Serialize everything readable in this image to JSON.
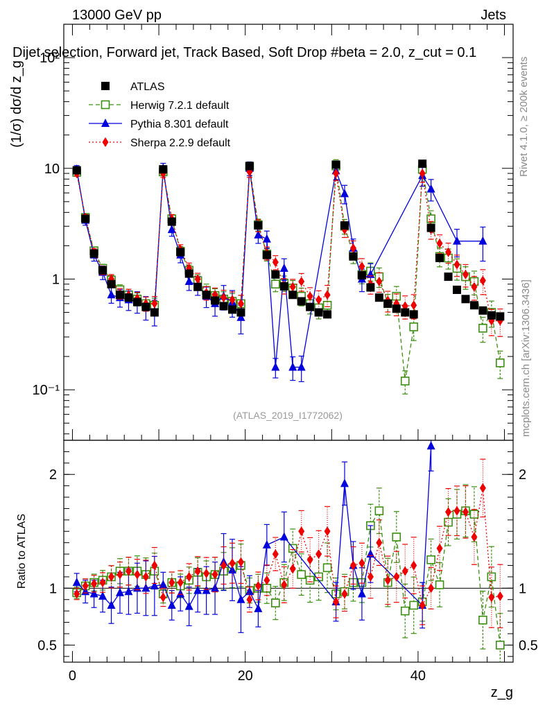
{
  "header": {
    "energy": "13000 GeV pp",
    "category": "Jets",
    "plot_title": "Dijet selection, Forward jet, Track Based, Soft Drop #beta = 2.0, z_cut = 0.1",
    "watermark": "(ATLAS_2019_I1772062)"
  },
  "side_labels": {
    "rivet": "Rivet 4.1.0, ≥ 200k events",
    "mcplots": "mcplots.cern.ch [arXiv:1306.3436]"
  },
  "colors": {
    "atlas": "#000000",
    "herwig": "#3a8f0f",
    "pythia": "#0000dd",
    "sherpa": "#ee0000"
  },
  "chart_data": [
    {
      "type": "scatter",
      "panel": "main",
      "ylabel": "(1/σ) dσ/d z_g",
      "yscale": "log",
      "ylim": [
        0.035,
        200
      ],
      "xlim": [
        -1,
        51
      ],
      "yticks": [
        {
          "value": 0.1,
          "label": "10⁻¹"
        },
        {
          "value": 1,
          "label": "1"
        },
        {
          "value": 10,
          "label": "10"
        },
        {
          "value": 100,
          "label": "10²"
        }
      ],
      "legend_position": "top-left",
      "x": [
        0.5,
        1.5,
        2.5,
        3.5,
        4.5,
        5.5,
        6.5,
        7.5,
        8.5,
        9.5,
        10.5,
        11.5,
        12.5,
        13.5,
        14.5,
        15.5,
        16.5,
        17.5,
        18.5,
        19.5,
        20.5,
        21.5,
        22.5,
        23.5,
        24.5,
        25.5,
        26.5,
        27.5,
        28.5,
        29.5,
        30.5,
        31.5,
        32.5,
        33.5,
        34.5,
        35.5,
        36.5,
        37.5,
        38.5,
        39.5,
        40.5,
        41.5,
        42.5,
        43.5,
        44.5,
        45.5,
        46.5,
        47.5,
        48.5,
        49.5
      ],
      "series": [
        {
          "name": "ATLAS",
          "style": "atlas",
          "values": [
            9.6,
            3.5,
            1.7,
            1.2,
            0.9,
            0.72,
            0.68,
            0.62,
            0.56,
            0.5,
            9.8,
            3.3,
            1.75,
            1.12,
            0.85,
            0.72,
            0.64,
            0.57,
            0.53,
            0.5,
            10.5,
            3.05,
            1.65,
            1.1,
            0.86,
            0.72,
            0.63,
            0.56,
            0.5,
            0.48,
            10.8,
            3.05,
            1.6,
            1.08,
            0.84,
            0.68,
            0.6,
            0.54,
            0.5,
            0.48,
            11.0,
            2.9,
            1.55,
            1.05,
            0.8,
            0.66,
            0.58,
            0.52,
            0.47,
            0.46
          ]
        },
        {
          "name": "Herwig 7.2.1 default",
          "style": "herwig",
          "values": [
            9.2,
            3.6,
            1.8,
            1.25,
            0.98,
            0.8,
            0.72,
            0.66,
            0.6,
            0.58,
            9.3,
            3.5,
            1.78,
            1.2,
            0.97,
            0.79,
            0.71,
            0.66,
            0.63,
            0.6,
            10.3,
            3.1,
            1.68,
            0.9,
            0.92,
            0.83,
            0.7,
            0.6,
            0.55,
            0.58,
            10.5,
            3.0,
            1.65,
            1.1,
            1.18,
            1.05,
            0.6,
            0.7,
            0.12,
            0.37,
            9.8,
            3.5,
            1.6,
            1.55,
            1.25,
            1.05,
            0.95,
            0.36,
            0.5,
            0.175
          ]
        },
        {
          "name": "Pythia 8.301 default",
          "style": "pythia",
          "values": [
            9.8,
            3.4,
            1.65,
            1.15,
            0.72,
            0.68,
            0.65,
            0.63,
            0.56,
            0.51,
            10.0,
            2.8,
            1.65,
            0.95,
            0.88,
            0.7,
            0.6,
            0.7,
            0.62,
            0.45,
            10.0,
            2.5,
            2.3,
            0.16,
            1.25,
            0.16,
            0.16,
            null,
            null,
            null,
            9.5,
            5.9,
            1.9,
            1.0,
            1.1,
            null,
            null,
            null,
            null,
            null,
            8.6,
            6.5,
            null,
            null,
            2.2,
            null,
            null,
            2.2,
            null,
            null
          ]
        },
        {
          "name": "Sherpa 2.2.9 default",
          "style": "sherpa",
          "values": [
            9.0,
            3.6,
            1.75,
            1.2,
            1.0,
            0.74,
            0.72,
            0.67,
            0.6,
            0.6,
            9.0,
            3.5,
            1.85,
            1.25,
            1.0,
            0.75,
            0.72,
            0.68,
            0.65,
            0.6,
            9.3,
            3.05,
            1.72,
            1.42,
            0.87,
            0.85,
            0.95,
            0.7,
            0.65,
            0.72,
            9.0,
            2.8,
            1.9,
            1.3,
            0.9,
            0.95,
            0.64,
            0.6,
            0.57,
            0.58,
            9.0,
            2.8,
            2.1,
            1.75,
            1.35,
            1.1,
            0.85,
            0.97,
            0.42,
            0.42
          ]
        }
      ]
    },
    {
      "type": "scatter",
      "panel": "ratio",
      "ylabel": "Ratio to ATLAS",
      "xlabel": "z_g",
      "ylim": [
        0.35,
        2.3
      ],
      "reference_line": 1,
      "yticks": [
        {
          "value": 0.5,
          "label": "0.5"
        },
        {
          "value": 1,
          "label": "1"
        },
        {
          "value": 2,
          "label": "2"
        }
      ],
      "xticks": [
        {
          "value": 0,
          "label": "0"
        },
        {
          "value": 20,
          "label": "20"
        },
        {
          "value": 40,
          "label": "40"
        }
      ],
      "series": [
        {
          "name": "Herwig 7.2.1 default",
          "style": "herwig",
          "values": [
            0.96,
            1.02,
            1.05,
            1.07,
            1.1,
            1.15,
            1.15,
            1.15,
            1.12,
            1.15,
            0.95,
            1.05,
            1.02,
            1.07,
            1.14,
            1.1,
            1.12,
            1.15,
            1.18,
            1.2,
            0.98,
            1.0,
            1.0,
            0.87,
            1.05,
            1.35,
            1.12,
            1.07,
            1.1,
            1.18,
            0.95,
            0.97,
            1.05,
            1.05,
            1.55,
            1.68,
            1.05,
            1.45,
            0.8,
            0.85,
            0.88,
            1.25,
            1.03,
            1.58,
            1.65,
            1.68,
            1.65,
            0.72,
            1.1,
            0.5
          ]
        },
        {
          "name": "Pythia 8.301 default",
          "style": "pythia",
          "values": [
            1.05,
            0.97,
            0.95,
            0.93,
            0.85,
            0.96,
            0.97,
            1.0,
            1.0,
            1.02,
            1.03,
            0.85,
            0.95,
            0.84,
            0.98,
            0.98,
            1.0,
            1.23,
            1.16,
            0.9,
            0.97,
            0.82,
            1.38,
            null,
            1.45,
            null,
            null,
            null,
            null,
            null,
            0.88,
            1.92,
            1.2,
            0.95,
            1.3,
            null,
            null,
            null,
            null,
            null,
            0.85,
            2.25,
            null,
            null,
            null,
            null,
            null,
            null,
            null,
            null
          ]
        },
        {
          "name": "Sherpa 2.2.9 default",
          "style": "sherpa",
          "values": [
            0.95,
            1.02,
            1.04,
            1.05,
            1.1,
            1.12,
            1.15,
            1.12,
            1.1,
            1.2,
            0.92,
            1.05,
            1.05,
            1.1,
            1.15,
            1.13,
            1.12,
            1.2,
            1.22,
            1.23,
            0.9,
            1.02,
            1.07,
            1.3,
            1.03,
            1.17,
            1.5,
            1.25,
            1.3,
            1.5,
            0.88,
            0.95,
            1.2,
            1.22,
            1.1,
            1.4,
            1.07,
            1.1,
            1.15,
            1.2,
            0.85,
            1.0,
            1.35,
            1.67,
            1.68,
            1.67,
            1.45,
            1.88,
            0.92,
            0.93
          ]
        }
      ]
    }
  ]
}
